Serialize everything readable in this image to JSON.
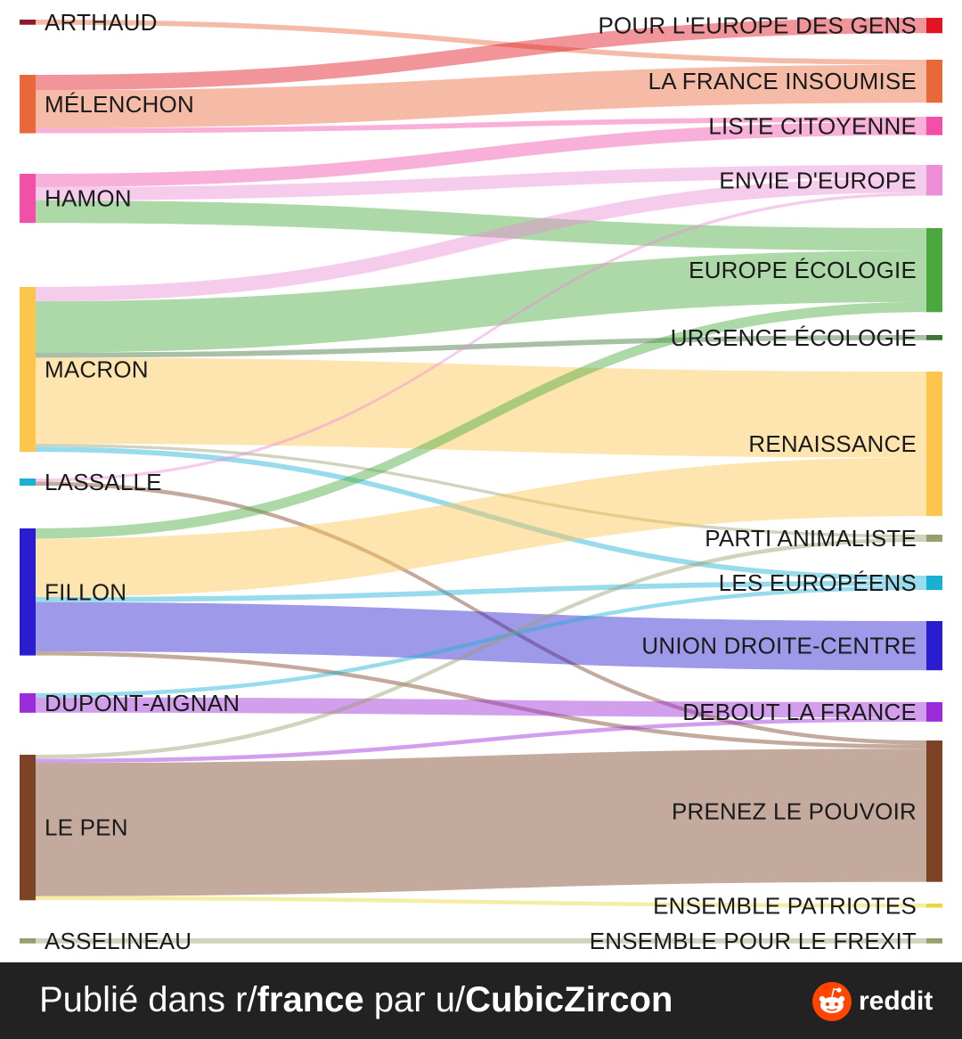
{
  "chart_data": {
    "type": "sankey",
    "left_nodes": [
      {
        "id": "arthaud",
        "label": "ARTHAUD",
        "color": "#8b1a2e"
      },
      {
        "id": "melenchon",
        "label": "MÉLENCHON",
        "color": "#e8683a"
      },
      {
        "id": "hamon",
        "label": "HAMON",
        "color": "#f24fa8"
      },
      {
        "id": "macron",
        "label": "MACRON",
        "color": "#fcc54d"
      },
      {
        "id": "lassalle",
        "label": "LASSALLE",
        "color": "#1ab0d6"
      },
      {
        "id": "fillon",
        "label": "FILLON",
        "color": "#2a1ccf"
      },
      {
        "id": "dupont",
        "label": "DUPONT-AIGNAN",
        "color": "#9b2bd8"
      },
      {
        "id": "lepen",
        "label": "LE PEN",
        "color": "#7d4326"
      },
      {
        "id": "asselineau",
        "label": "ASSELINEAU",
        "color": "#97a06d"
      }
    ],
    "right_nodes": [
      {
        "id": "pour_europe",
        "label": "POUR L'EUROPE DES GENS",
        "color": "#e0151f"
      },
      {
        "id": "lfi",
        "label": "LA FRANCE INSOUMISE",
        "color": "#e8683a"
      },
      {
        "id": "citoyenne",
        "label": "LISTE CITOYENNE",
        "color": "#f24fa8"
      },
      {
        "id": "envie",
        "label": "ENVIE D'EUROPE",
        "color": "#ec8fd6"
      },
      {
        "id": "eelv",
        "label": "EUROPE ÉCOLOGIE",
        "color": "#4aa83e"
      },
      {
        "id": "urgence",
        "label": "URGENCE ÉCOLOGIE",
        "color": "#3f7438"
      },
      {
        "id": "renaissance",
        "label": "RENAISSANCE",
        "color": "#fcc54d"
      },
      {
        "id": "animaliste",
        "label": "PARTI ANIMALISTE",
        "color": "#97a06d"
      },
      {
        "id": "europeens",
        "label": "LES EUROPÉENS",
        "color": "#1ab0d6"
      },
      {
        "id": "udc",
        "label": "UNION DROITE-CENTRE",
        "color": "#2a1ccf"
      },
      {
        "id": "dlf",
        "label": "DEBOUT LA FRANCE",
        "color": "#9b2bd8"
      },
      {
        "id": "pouvoir",
        "label": "PRENEZ LE POUVOIR",
        "color": "#7d4326"
      },
      {
        "id": "patriotes",
        "label": "ENSEMBLE PATRIOTES",
        "color": "#e8d83a"
      },
      {
        "id": "frexit",
        "label": "ENSEMBLE POUR LE FREXIT",
        "color": "#97a06d"
      }
    ],
    "links": [
      {
        "source": "arthaud",
        "target": "lfi",
        "value": 0.5,
        "color": "#e8683a"
      },
      {
        "source": "melenchon",
        "target": "pour_europe",
        "value": 1.5,
        "color": "#e0151f"
      },
      {
        "source": "melenchon",
        "target": "lfi",
        "value": 3.7,
        "color": "#e8683a"
      },
      {
        "source": "melenchon",
        "target": "citoyenne",
        "value": 0.5,
        "color": "#f24fa8"
      },
      {
        "source": "hamon",
        "target": "citoyenne",
        "value": 1.3,
        "color": "#f24fa8"
      },
      {
        "source": "hamon",
        "target": "envie",
        "value": 1.3,
        "color": "#ec8fd6"
      },
      {
        "source": "hamon",
        "target": "eelv",
        "value": 2.2,
        "color": "#4aa83e"
      },
      {
        "source": "macron",
        "target": "envie",
        "value": 1.4,
        "color": "#ec8fd6"
      },
      {
        "source": "macron",
        "target": "eelv",
        "value": 5.0,
        "color": "#4aa83e"
      },
      {
        "source": "macron",
        "target": "urgence",
        "value": 0.5,
        "color": "#3f7438"
      },
      {
        "source": "macron",
        "target": "renaissance",
        "value": 8.4,
        "color": "#fcc54d"
      },
      {
        "source": "macron",
        "target": "animaliste",
        "value": 0.3,
        "color": "#97a06d"
      },
      {
        "source": "macron",
        "target": "europeens",
        "value": 0.5,
        "color": "#1ab0d6"
      },
      {
        "source": "lassalle",
        "target": "envie",
        "value": 0.3,
        "color": "#ec8fd6"
      },
      {
        "source": "lassalle",
        "target": "pouvoir",
        "value": 0.4,
        "color": "#7d4326"
      },
      {
        "source": "fillon",
        "target": "eelv",
        "value": 1.0,
        "color": "#4aa83e"
      },
      {
        "source": "fillon",
        "target": "renaissance",
        "value": 5.7,
        "color": "#fcc54d"
      },
      {
        "source": "fillon",
        "target": "europeens",
        "value": 0.5,
        "color": "#1ab0d6"
      },
      {
        "source": "fillon",
        "target": "udc",
        "value": 4.8,
        "color": "#2a1ccf"
      },
      {
        "source": "fillon",
        "target": "pouvoir",
        "value": 0.4,
        "color": "#7d4326"
      },
      {
        "source": "dupont",
        "target": "europeens",
        "value": 0.4,
        "color": "#1ab0d6"
      },
      {
        "source": "dupont",
        "target": "dlf",
        "value": 1.5,
        "color": "#9b2bd8"
      },
      {
        "source": "lepen",
        "target": "animaliste",
        "value": 0.4,
        "color": "#97a06d"
      },
      {
        "source": "lepen",
        "target": "dlf",
        "value": 0.4,
        "color": "#9b2bd8"
      },
      {
        "source": "lepen",
        "target": "pouvoir",
        "value": 13.0,
        "color": "#7d4326"
      },
      {
        "source": "lepen",
        "target": "patriotes",
        "value": 0.4,
        "color": "#e8d83a"
      },
      {
        "source": "asselineau",
        "target": "frexit",
        "value": 0.5,
        "color": "#97a06d"
      }
    ]
  },
  "footer": {
    "prefix": "Publié dans r/",
    "subreddit": "france",
    "middle": " par u/",
    "username": "CubicZircon",
    "brand": "reddit",
    "brand_icon": "reddit-alien-icon",
    "background_color": "#222222",
    "brand_color": "#ff4500"
  }
}
